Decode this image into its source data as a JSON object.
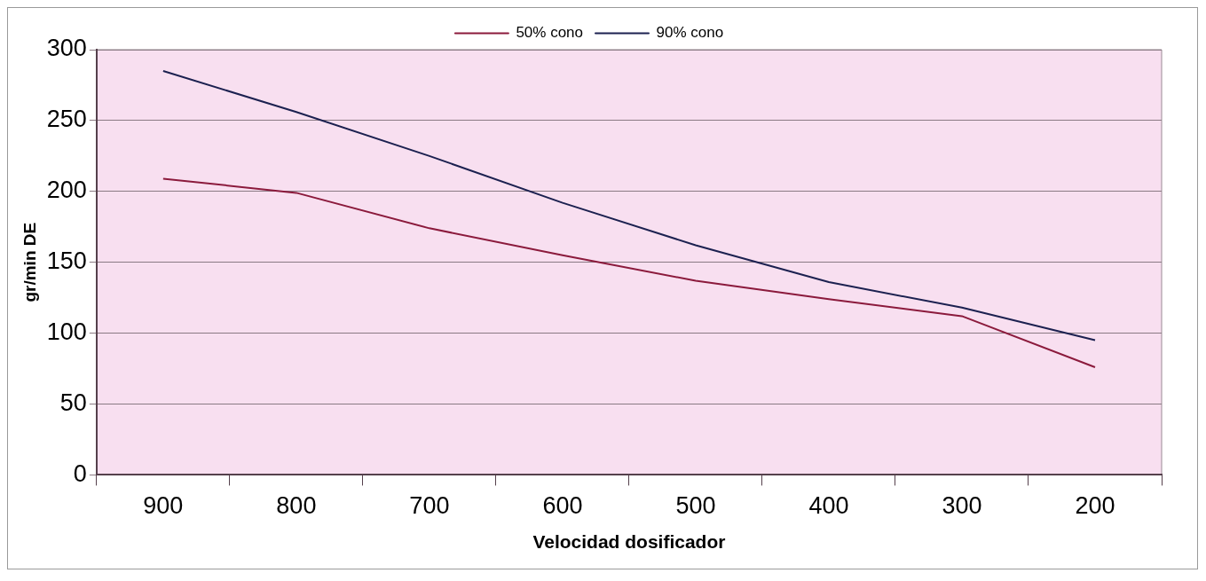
{
  "chart_data": {
    "type": "line",
    "xlabel": "Velocidad dosificador",
    "ylabel": "gr/min DE",
    "categories": [
      "900",
      "800",
      "700",
      "600",
      "500",
      "400",
      "300",
      "200"
    ],
    "series": [
      {
        "name": "50% cono",
        "color": "#8b1a3c",
        "values": [
          209,
          199,
          174,
          155,
          137,
          124,
          112,
          76
        ]
      },
      {
        "name": "90% cono",
        "color": "#1c2150",
        "values": [
          285,
          256,
          225,
          192,
          162,
          136,
          118,
          95
        ]
      }
    ],
    "ylim": [
      0,
      300
    ],
    "yticks": [
      0,
      50,
      100,
      150,
      200,
      250,
      300
    ],
    "grid": "y",
    "legend": "top",
    "marker": "none",
    "line_style": "solid"
  }
}
